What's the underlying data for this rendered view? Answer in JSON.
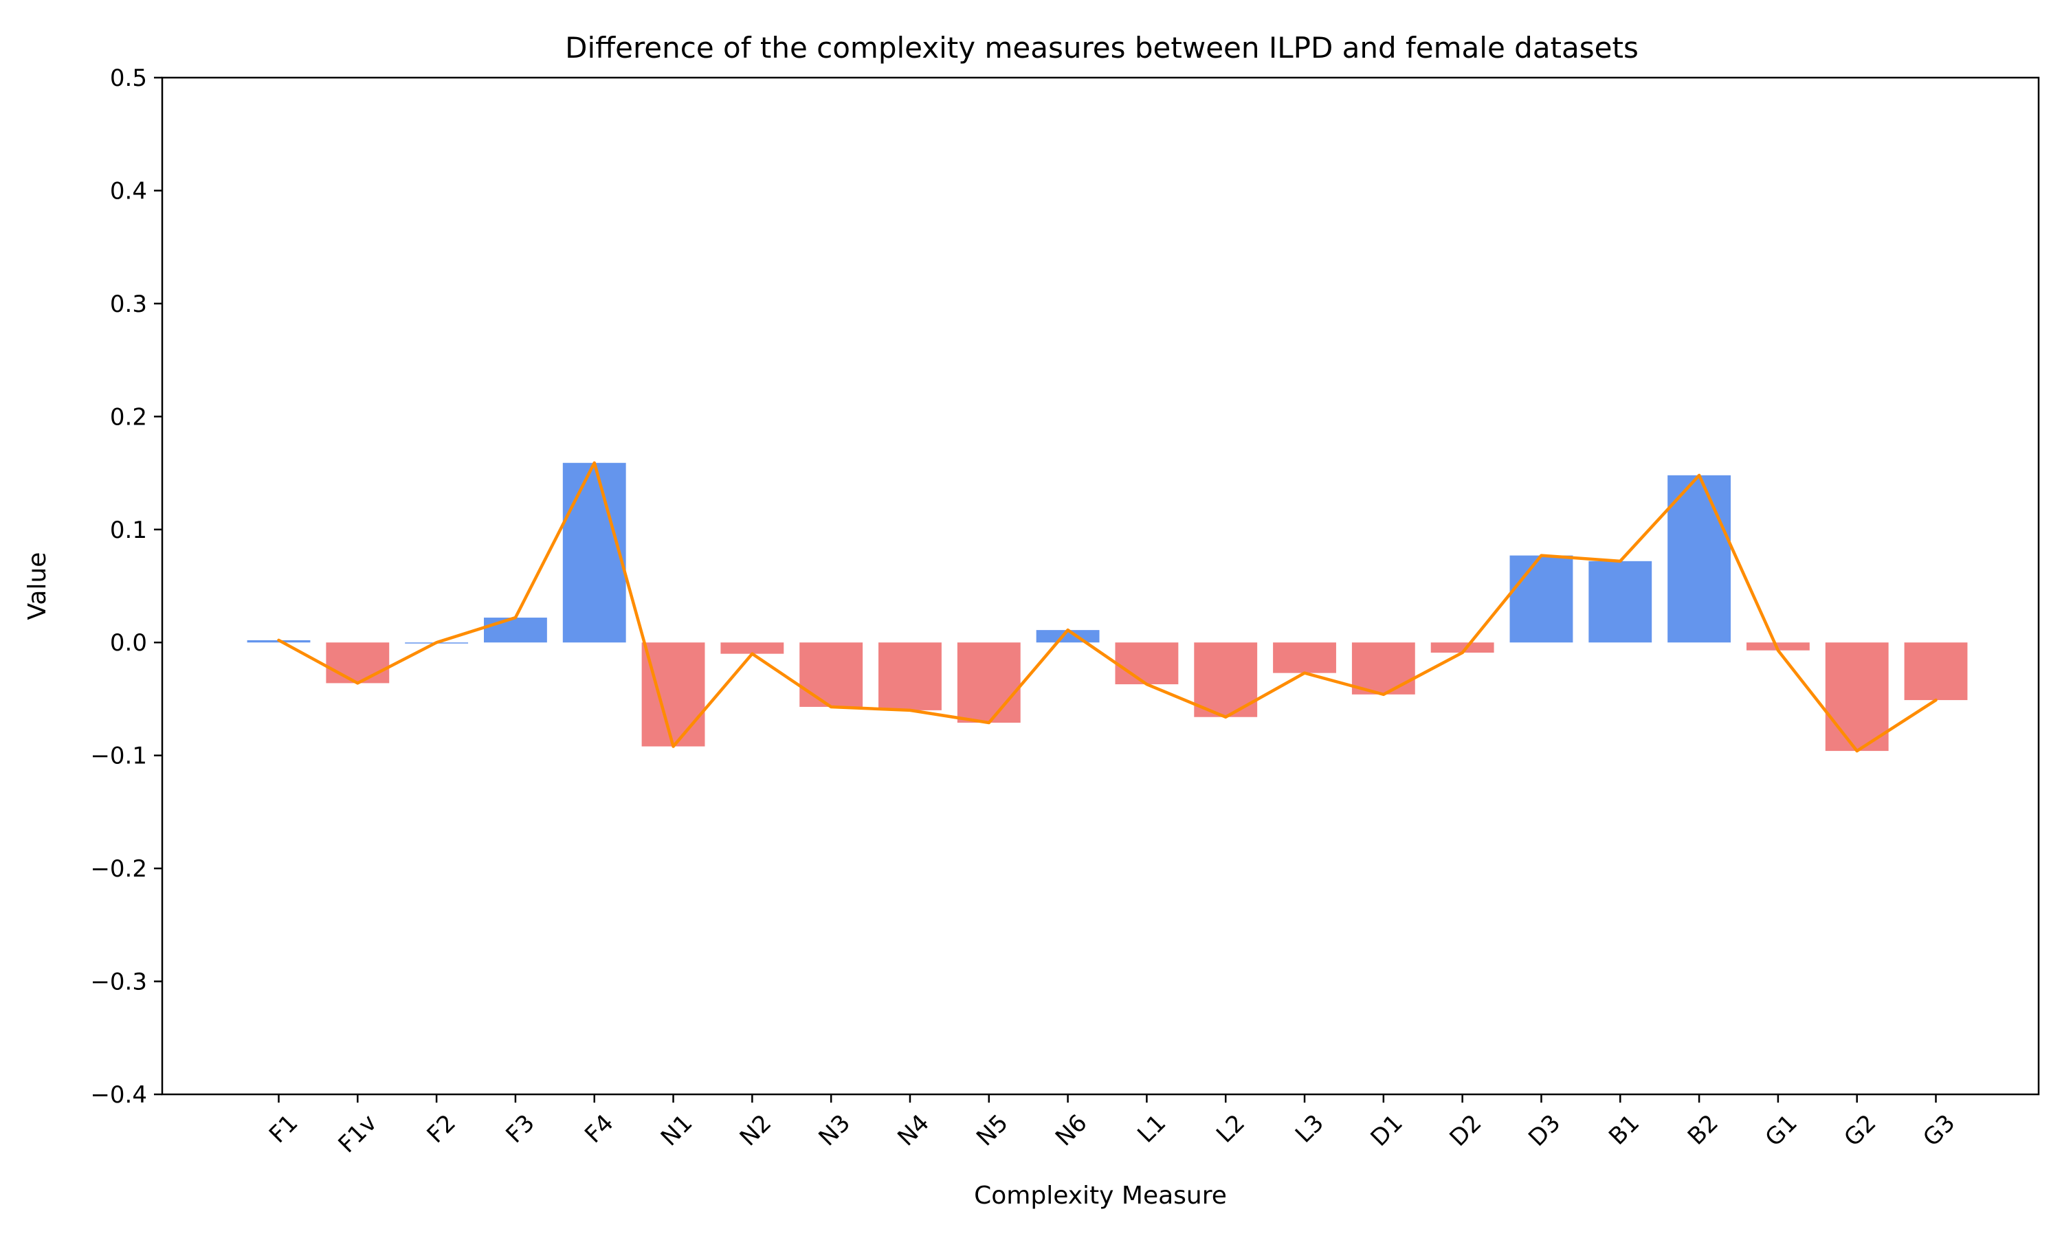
{
  "chart_data": {
    "type": "bar",
    "title": "Difference of the complexity measures between ILPD and female datasets",
    "xlabel": "Complexity Measure",
    "ylabel": "Value",
    "ylim": [
      -0.4,
      0.5
    ],
    "yticks": [
      -0.4,
      -0.3,
      -0.2,
      -0.1,
      0.0,
      0.1,
      0.2,
      0.3,
      0.4,
      0.5
    ],
    "ytick_labels": [
      "−0.4",
      "−0.3",
      "−0.2",
      "−0.1",
      "0.0",
      "0.1",
      "0.2",
      "0.3",
      "0.4",
      "0.5"
    ],
    "categories": [
      "F1",
      "F1v",
      "F2",
      "F3",
      "F4",
      "N1",
      "N2",
      "N3",
      "N4",
      "N5",
      "N6",
      "L1",
      "L2",
      "L3",
      "D1",
      "D2",
      "D3",
      "B1",
      "B2",
      "G1",
      "G2",
      "G3"
    ],
    "values": [
      0.002,
      -0.036,
      0.0,
      0.022,
      0.159,
      -0.092,
      -0.01,
      -0.057,
      -0.06,
      -0.071,
      0.011,
      -0.037,
      -0.066,
      -0.027,
      -0.046,
      -0.009,
      0.077,
      0.072,
      0.148,
      -0.007,
      -0.096,
      -0.051
    ],
    "line_overlay": true,
    "grid": false,
    "legend": "none",
    "colors": {
      "positive_bar": "#6495ED",
      "negative_bar": "#F08080",
      "line": "#FF8C00",
      "axis": "#000000",
      "background": "#ffffff"
    }
  }
}
